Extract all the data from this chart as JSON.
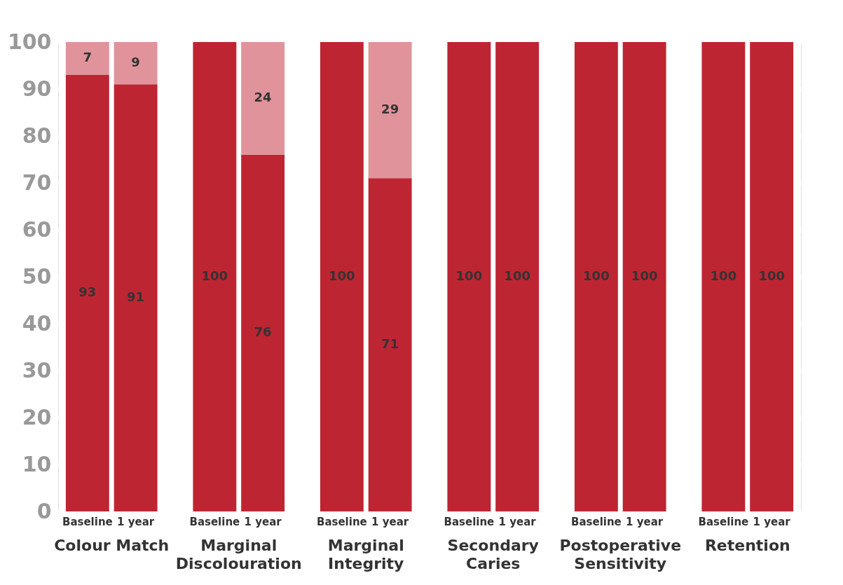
{
  "chart_data": {
    "type": "bar",
    "stacked": true,
    "categories": [
      "Baseline",
      "1 year",
      "Baseline",
      "1 year",
      "Baseline",
      "1 year",
      "Baseline",
      "1 year",
      "Baseline",
      "1 year",
      "Baseline",
      "1 year"
    ],
    "annotations": [
      "Colour Match",
      "Marginal\nDiscolouration",
      "Marginal\nIntegrity",
      "Secondary\nCaries",
      "Postoperative\nSensitivity",
      "Retention"
    ],
    "series": [
      {
        "color": "#be2532",
        "values": [
          93,
          91,
          100,
          76,
          100,
          71,
          100,
          100,
          100,
          100,
          100,
          100
        ]
      },
      {
        "color": "#e0939a",
        "values": [
          7,
          9,
          null,
          24,
          null,
          29,
          null,
          null,
          null,
          null,
          null,
          null
        ]
      }
    ],
    "ylim": [
      0,
      100
    ],
    "yticks": [
      0,
      10,
      20,
      30,
      40,
      50,
      60,
      70,
      80,
      90,
      100
    ],
    "grid": "y",
    "data_labels": true
  }
}
